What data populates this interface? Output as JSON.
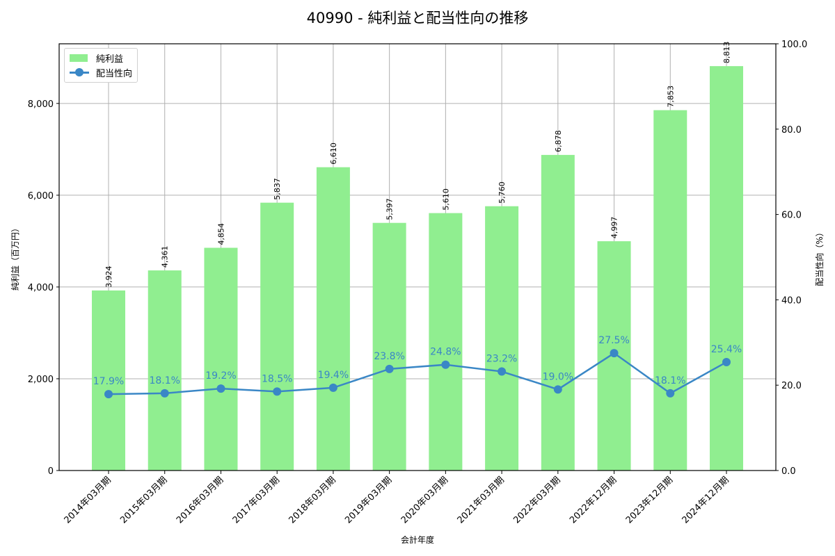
{
  "title": "40990 - 純利益と配当性向の推移",
  "legend": {
    "bar_label": "純利益",
    "line_label": "配当性向"
  },
  "axes": {
    "xlabel": "会計年度",
    "ylabel_left": "純利益（百万円）",
    "ylabel_right": "配当性向（%）",
    "left_ticks": [
      "0",
      "2,000",
      "4,000",
      "6,000",
      "8,000"
    ],
    "right_ticks": [
      "0.0",
      "20.0",
      "40.0",
      "60.0",
      "80.0",
      "100.0"
    ]
  },
  "colors": {
    "bar": "#90ee90",
    "line": "#3a87c6",
    "grid": "#b0b0b0"
  },
  "chart_data": {
    "type": "bar+line",
    "title": "40990 - 純利益と配当性向の推移",
    "xlabel": "会計年度",
    "ylabel": "純利益（百万円）",
    "ylabel_right": "配当性向（%）",
    "categories": [
      "2014年03月期",
      "2015年03月期",
      "2016年03月期",
      "2017年03月期",
      "2018年03月期",
      "2019年03月期",
      "2020年03月期",
      "2021年03月期",
      "2022年03月期",
      "2022年12月期",
      "2023年12月期",
      "2024年12月期"
    ],
    "series": [
      {
        "name": "純利益",
        "type": "bar",
        "axis": "left",
        "values": [
          3924,
          4361,
          4854,
          5837,
          6610,
          5397,
          5610,
          5760,
          6878,
          4997,
          7853,
          8813
        ],
        "labels": [
          "3,924",
          "4,361",
          "4,854",
          "5,837",
          "6,610",
          "5,397",
          "5,610",
          "5,760",
          "6,878",
          "4,997",
          "7,853",
          "8,813"
        ]
      },
      {
        "name": "配当性向",
        "type": "line",
        "axis": "right",
        "values": [
          17.9,
          18.1,
          19.2,
          18.5,
          19.4,
          23.8,
          24.8,
          23.2,
          19.0,
          27.5,
          18.1,
          25.4
        ],
        "labels": [
          "17.9%",
          "18.1%",
          "19.2%",
          "18.5%",
          "19.4%",
          "23.8%",
          "24.8%",
          "23.2%",
          "19.0%",
          "27.5%",
          "18.1%",
          "25.4%"
        ]
      }
    ],
    "ylim": [
      0,
      9300
    ],
    "ylim_right": [
      0,
      100
    ],
    "grid": true,
    "legend_position": "upper left"
  }
}
